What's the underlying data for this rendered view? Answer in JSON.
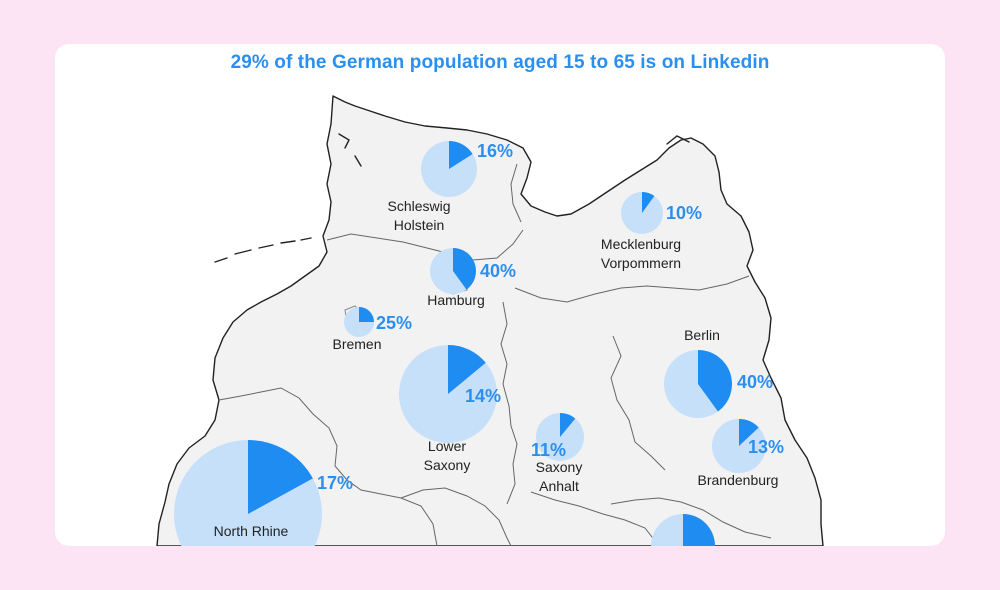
{
  "title": "29% of the German population aged 15 to 65 is on Linkedin",
  "colors": {
    "background": "#fce4f5",
    "card": "#ffffff",
    "land": "#f2f2f2",
    "border": "#222222",
    "pie_light": "#c6e0fa",
    "pie_dark": "#1e8cf0",
    "accent_text": "#2b8ff0"
  },
  "regions": [
    {
      "key": "schleswig",
      "name_lines": [
        "Schleswig",
        "Holstein"
      ],
      "percent_label": "16%",
      "share": 0.16
    },
    {
      "key": "mecklenburg",
      "name_lines": [
        "Mecklenburg",
        "Vorpommern"
      ],
      "percent_label": "10%",
      "share": 0.1
    },
    {
      "key": "hamburg",
      "name_lines": [
        "Hamburg"
      ],
      "percent_label": "40%",
      "share": 0.4
    },
    {
      "key": "bremen",
      "name_lines": [
        "Bremen"
      ],
      "percent_label": "25%",
      "share": 0.25
    },
    {
      "key": "lower-saxony",
      "name_lines": [
        "Lower",
        "Saxony"
      ],
      "percent_label": "14%",
      "share": 0.14
    },
    {
      "key": "saxony-anhalt",
      "name_lines": [
        "Saxony",
        "Anhalt"
      ],
      "percent_label": "11%",
      "share": 0.11
    },
    {
      "key": "berlin",
      "name_lines": [
        "Berlin"
      ],
      "percent_label": "40%",
      "share": 0.4
    },
    {
      "key": "brandenburg",
      "name_lines": [
        "Brandenburg"
      ],
      "percent_label": "13%",
      "share": 0.13
    },
    {
      "key": "north-rhine",
      "name_lines": [
        "North Rhine"
      ],
      "percent_label": "17%",
      "share": 0.17
    },
    {
      "key": "saxony-partial",
      "name_lines": [],
      "percent_label": "",
      "share": 0.25
    }
  ]
}
